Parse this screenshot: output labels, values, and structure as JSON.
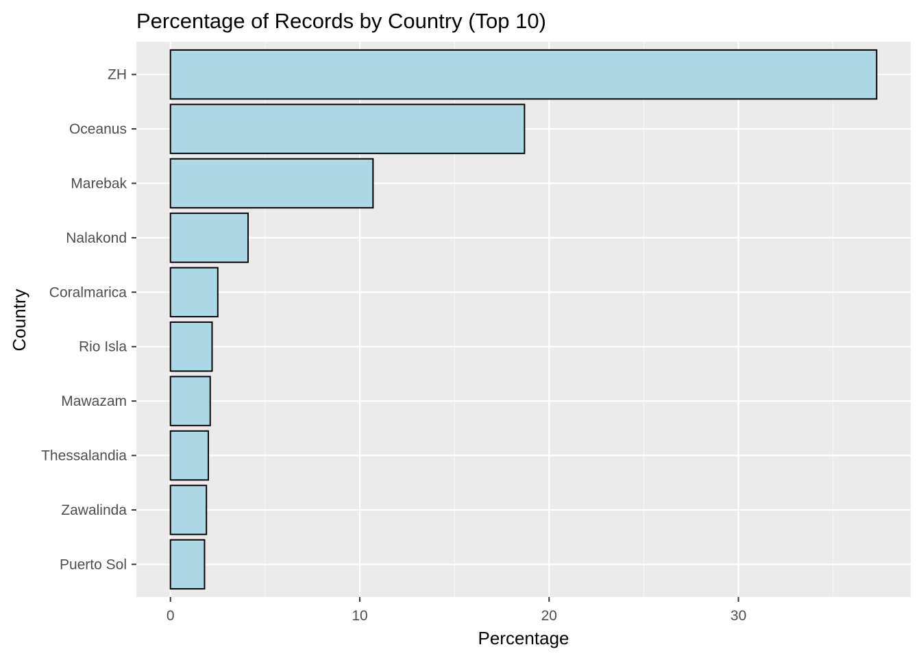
{
  "chart_data": {
    "type": "bar",
    "orientation": "horizontal",
    "title": "Percentage of Records by Country (Top 10)",
    "xlabel": "Percentage",
    "ylabel": "Country",
    "categories": [
      "ZH",
      "Oceanus",
      "Marebak",
      "Nalakond",
      "Coralmarica",
      "Rio Isla",
      "Mawazam",
      "Thessalandia",
      "Zawalinda",
      "Puerto Sol"
    ],
    "values": [
      37.3,
      18.7,
      10.7,
      4.1,
      2.5,
      2.2,
      2.1,
      2.0,
      1.9,
      1.8
    ],
    "xlim": [
      -1.8,
      39.1
    ],
    "xticks": [
      0,
      10,
      20,
      30
    ],
    "xtick_labels": [
      "0",
      "10",
      "20",
      "30"
    ],
    "grid": true,
    "legend": "none",
    "colors": {
      "bar_fill": "#ADD8E6",
      "bar_stroke": "#000000",
      "panel_bg": "#EBEBEB",
      "grid_major": "#FFFFFF",
      "grid_minor": "#F7F7F7"
    }
  }
}
